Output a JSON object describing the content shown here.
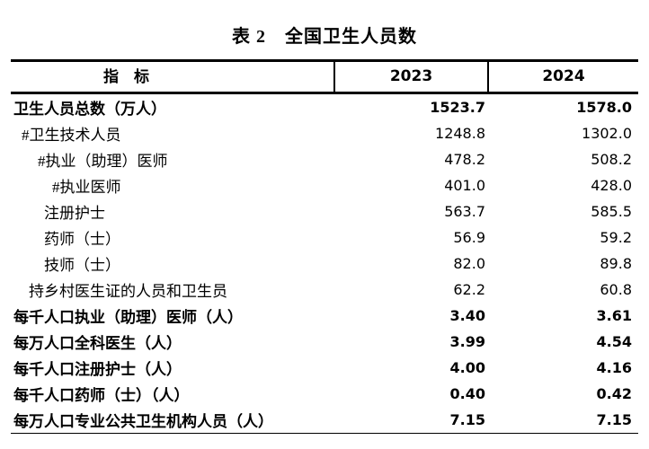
{
  "title": "表 2　全国卫生人员数",
  "table": {
    "columns": [
      "指　标",
      "2023",
      "2024"
    ],
    "rows": [
      {
        "label": "卫生人员总数（万人）",
        "v2023": "1523.7",
        "v2024": "1578.0"
      },
      {
        "label": "#卫生技术人员",
        "v2023": "1248.8",
        "v2024": "1302.0"
      },
      {
        "label": "#执业（助理）医师",
        "v2023": "478.2",
        "v2024": "508.2"
      },
      {
        "label": "#执业医师",
        "v2023": "401.0",
        "v2024": "428.0"
      },
      {
        "label": "注册护士",
        "v2023": "563.7",
        "v2024": "585.5"
      },
      {
        "label": "药师（士）",
        "v2023": "56.9",
        "v2024": "59.2"
      },
      {
        "label": "技师（士）",
        "v2023": "82.0",
        "v2024": "89.8"
      },
      {
        "label": "持乡村医生证的人员和卫生员",
        "v2023": "62.2",
        "v2024": "60.8"
      },
      {
        "label": "每千人口执业（助理）医师（人）",
        "v2023": "3.40",
        "v2024": "3.61"
      },
      {
        "label": "每万人口全科医生（人）",
        "v2023": "3.99",
        "v2024": "4.54"
      },
      {
        "label": "每千人口注册护士（人）",
        "v2023": "4.00",
        "v2024": "4.16"
      },
      {
        "label": "每千人口药师（士）（人）",
        "v2023": "0.40",
        "v2024": "0.42"
      },
      {
        "label": "每万人口专业公共卫生机构人员（人）",
        "v2023": "7.15",
        "v2024": "7.15"
      }
    ]
  }
}
